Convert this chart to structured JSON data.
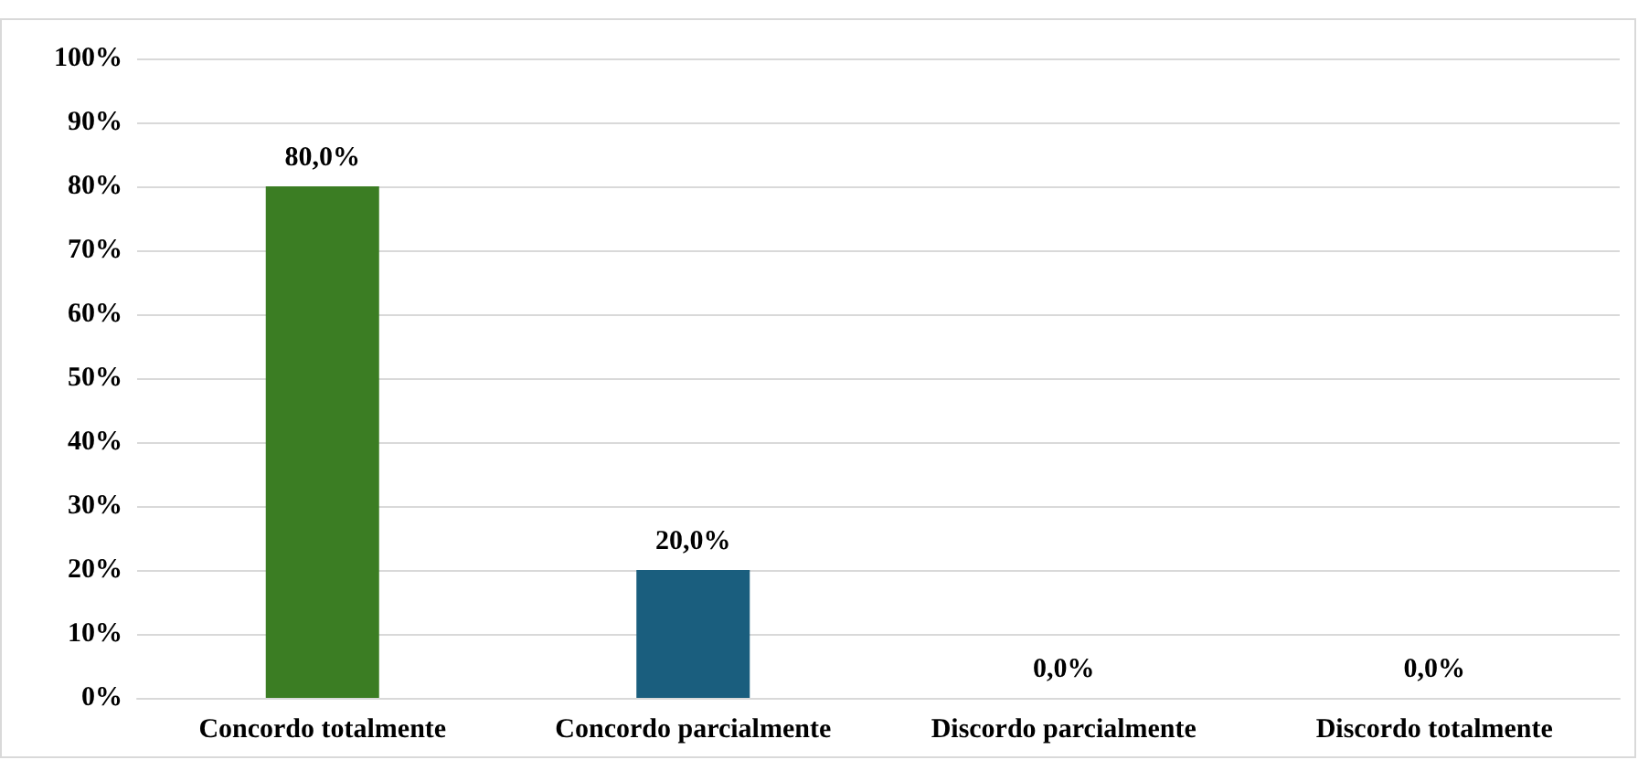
{
  "chart_data": {
    "type": "bar",
    "categories": [
      "Concordo totalmente",
      "Concordo parcialmente",
      "Discordo parcialmente",
      "Discordo totalmente"
    ],
    "values": [
      80,
      20,
      0,
      0
    ],
    "colors": [
      "#3b7d23",
      "#1a5e7e",
      null,
      null
    ],
    "value_labels": [
      "80,0%",
      "20,0%",
      "0,0%",
      "0,0%"
    ],
    "ylim": [
      0,
      100
    ],
    "yticks": [
      {
        "value": 0,
        "label": "0%"
      },
      {
        "value": 10,
        "label": "10%"
      },
      {
        "value": 20,
        "label": "20%"
      },
      {
        "value": 30,
        "label": "30%"
      },
      {
        "value": 40,
        "label": "40%"
      },
      {
        "value": 50,
        "label": "50%"
      },
      {
        "value": 60,
        "label": "60%"
      },
      {
        "value": 70,
        "label": "70%"
      },
      {
        "value": 80,
        "label": "80%"
      },
      {
        "value": 90,
        "label": "90%"
      },
      {
        "value": 100,
        "label": "100%"
      }
    ],
    "grid": "y"
  }
}
